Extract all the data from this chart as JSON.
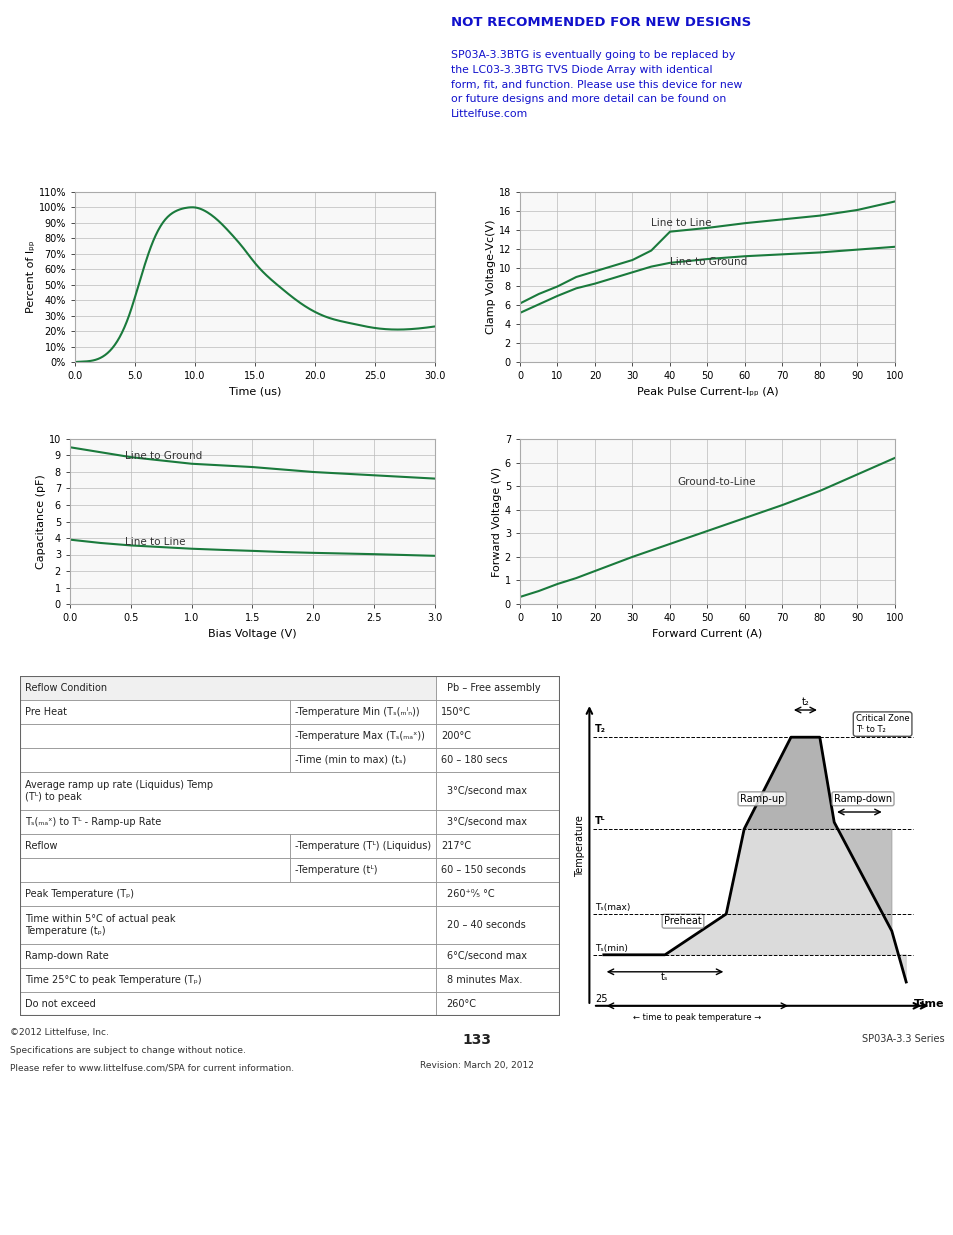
{
  "header_bg": "#2e7d4f",
  "notice_bg": "#ddeeff",
  "notice_border": "#2222cc",
  "plot_line_color": "#1a7a3c",
  "grid_color": "#bbbbbb",
  "fig_title_bg": "#2e7d4f",
  "fig_title_color": "#ffffff",
  "page_bg": "#ffffff",
  "side_tab_bg": "#2e7d4f",
  "fig3_x": [
    0.0,
    1.5,
    3.0,
    4.5,
    5.5,
    6.5,
    7.5,
    8.5,
    9.5,
    10.0,
    11.0,
    12.0,
    13.0,
    14.0,
    15.0,
    17.0,
    19.0,
    21.0,
    23.0,
    25.0,
    27.0,
    29.0,
    30.0
  ],
  "fig3_y": [
    0,
    1,
    8,
    30,
    55,
    78,
    92,
    98,
    100,
    100,
    97,
    91,
    83,
    74,
    64,
    49,
    37,
    29,
    25,
    22,
    21,
    22,
    23
  ],
  "fig4_x": [
    0,
    5,
    10,
    15,
    20,
    25,
    30,
    35,
    40,
    50,
    60,
    70,
    80,
    90,
    100
  ],
  "fig4_l2l": [
    6.2,
    7.2,
    8.0,
    9.0,
    9.6,
    10.2,
    10.8,
    11.8,
    13.8,
    14.2,
    14.7,
    15.1,
    15.5,
    16.1,
    17.0
  ],
  "fig4_l2g": [
    5.2,
    6.1,
    7.0,
    7.8,
    8.3,
    8.9,
    9.5,
    10.1,
    10.5,
    10.9,
    11.2,
    11.4,
    11.6,
    11.9,
    12.2
  ],
  "fig5_x": [
    0.0,
    0.25,
    0.5,
    0.75,
    1.0,
    1.25,
    1.5,
    1.75,
    2.0,
    2.25,
    2.5,
    2.75,
    3.0
  ],
  "fig5_l2g": [
    9.5,
    9.2,
    8.9,
    8.7,
    8.5,
    8.4,
    8.3,
    8.15,
    8.0,
    7.9,
    7.8,
    7.7,
    7.6
  ],
  "fig5_l2l": [
    3.9,
    3.7,
    3.55,
    3.45,
    3.35,
    3.28,
    3.22,
    3.15,
    3.1,
    3.06,
    3.02,
    2.97,
    2.92
  ],
  "fig6_x": [
    0,
    5,
    10,
    15,
    20,
    25,
    30,
    40,
    50,
    60,
    70,
    80,
    90,
    100
  ],
  "fig6_y": [
    0.3,
    0.55,
    0.85,
    1.1,
    1.4,
    1.7,
    2.0,
    2.55,
    3.1,
    3.65,
    4.2,
    4.8,
    5.5,
    6.2
  ],
  "table_rows": [
    [
      "Reflow Condition",
      "",
      "Pb – Free assembly"
    ],
    [
      "Pre Heat",
      "-Temperature Min (T_{s(min)})",
      "150°C"
    ],
    [
      "",
      "-Temperature Max (T_{s(max)})",
      "200°C"
    ],
    [
      "",
      "-Time (min to max) (t_s)",
      "60 – 180 secs"
    ],
    [
      "Average ramp up rate (Liquidus) Temp\n(T_L) to peak",
      "",
      "3°C/second max"
    ],
    [
      "T_{S(max)} to T_L - Ramp-up Rate",
      "",
      "3°C/second max"
    ],
    [
      "Reflow",
      "-Temperature (T_L) (Liquidus)",
      "217°C"
    ],
    [
      "",
      "-Temperature (t_L)",
      "60 – 150 seconds"
    ],
    [
      "Peak Temperature (T_p)",
      "",
      "260⁺⁰⁄₅ °C"
    ],
    [
      "Time within 5°C of actual peak\nTemperature (t_p)",
      "",
      "20 – 40 seconds"
    ],
    [
      "Ramp-down Rate",
      "",
      "6°C/second max"
    ],
    [
      "Time 25°C to peak Temperature (T_p)",
      "",
      "8 minutes Max."
    ],
    [
      "Do not exceed",
      "",
      "260°C"
    ]
  ]
}
